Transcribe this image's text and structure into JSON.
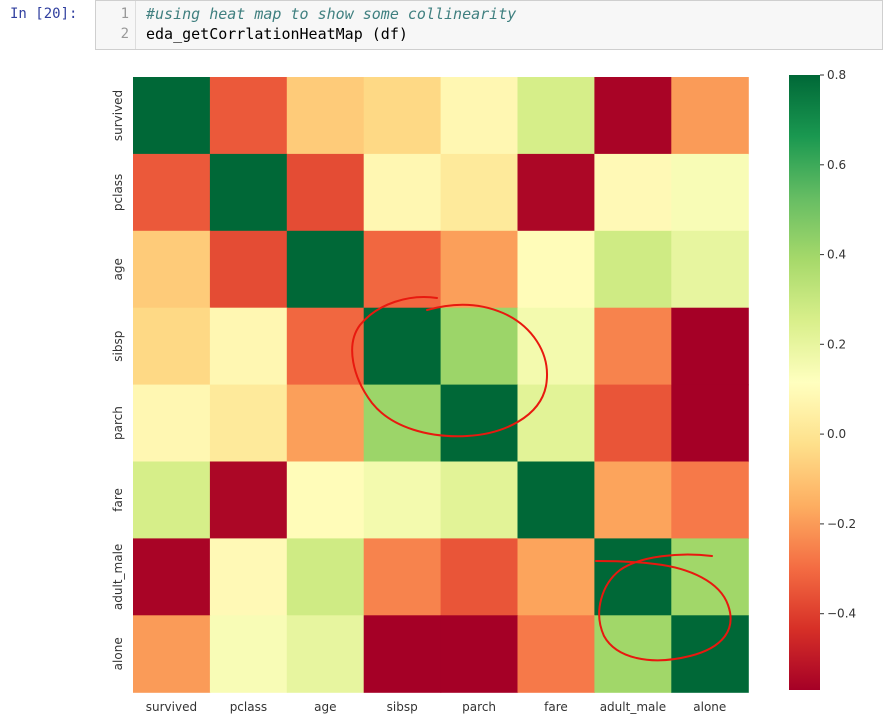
{
  "cell": {
    "prompt": "In [20]:",
    "lines": [
      {
        "number": "1",
        "text": "#using heat map to show some collinearity",
        "is_comment": true
      },
      {
        "number": "2",
        "text": "eda_getCorrlationHeatMap (df)",
        "is_comment": false
      }
    ]
  },
  "colors": {
    "cmap": "RdYlGn",
    "annotation_stroke": "#e8190f"
  },
  "chart_data": {
    "type": "heatmap",
    "labels": [
      "survived",
      "pclass",
      "age",
      "sibsp",
      "parch",
      "fare",
      "adult_male",
      "alone"
    ],
    "colorbar_ticks": [
      0.8,
      0.6,
      0.4,
      0.2,
      0.0,
      -0.2,
      -0.4
    ],
    "colorbar_tick_labels": [
      "0.8",
      "0.6",
      "0.4",
      "0.2",
      "0.0",
      "−0.2",
      "−0.4"
    ],
    "vmin": -0.57,
    "vmax": 0.8,
    "matrix": [
      [
        1.0,
        -0.34,
        -0.08,
        -0.04,
        0.08,
        0.26,
        -0.56,
        -0.2
      ],
      [
        -0.34,
        1.0,
        -0.37,
        0.08,
        0.02,
        -0.55,
        0.09,
        0.14
      ],
      [
        -0.08,
        -0.37,
        1.0,
        -0.31,
        -0.19,
        0.1,
        0.28,
        0.2
      ],
      [
        -0.04,
        0.08,
        -0.31,
        1.0,
        0.41,
        0.16,
        -0.25,
        -0.58
      ],
      [
        0.08,
        0.02,
        -0.19,
        0.41,
        1.0,
        0.22,
        -0.35,
        -0.58
      ],
      [
        0.26,
        -0.55,
        0.1,
        0.16,
        0.22,
        1.0,
        -0.18,
        -0.27
      ],
      [
        -0.56,
        0.09,
        0.28,
        -0.25,
        -0.35,
        -0.18,
        1.0,
        0.4
      ],
      [
        -0.2,
        0.14,
        0.2,
        -0.58,
        -0.58,
        -0.27,
        0.4,
        1.0
      ]
    ]
  }
}
